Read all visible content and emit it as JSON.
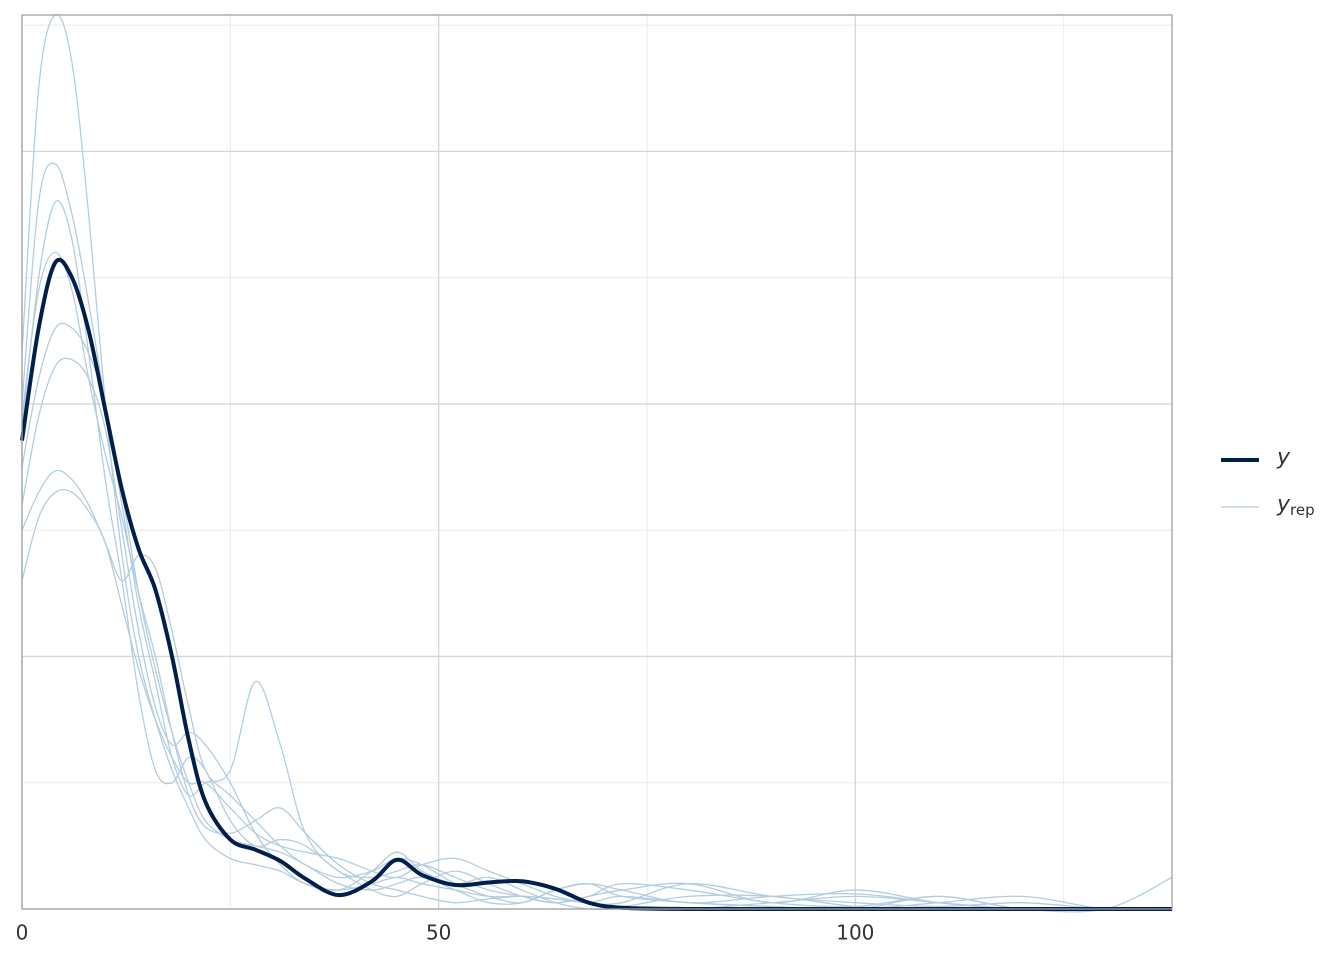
{
  "chart_data": {
    "type": "density-overlay",
    "x": [
      0,
      2,
      4,
      6,
      8,
      10,
      12,
      14,
      16,
      18,
      20,
      22,
      25,
      28,
      31,
      34,
      38,
      42,
      45,
      48,
      52,
      56,
      60,
      64,
      68,
      72,
      80,
      90,
      100,
      110,
      120,
      130,
      138
    ],
    "xlim": [
      0,
      138
    ],
    "xticks": [
      0,
      50,
      100
    ],
    "xminor": [
      25,
      75,
      125
    ],
    "ylim": [
      0,
      7.08
    ],
    "yticks": [
      0,
      2,
      4,
      6
    ],
    "yminor": [
      1,
      3,
      5,
      7
    ],
    "grid": true,
    "legend": "right",
    "series": [
      {
        "name": "y",
        "color": "#011f4b",
        "width": 4,
        "values": [
          3.71,
          4.6,
          5.12,
          5.0,
          4.58,
          3.95,
          3.32,
          2.85,
          2.53,
          2.0,
          1.34,
          0.85,
          0.55,
          0.47,
          0.38,
          0.24,
          0.11,
          0.22,
          0.39,
          0.27,
          0.19,
          0.21,
          0.22,
          0.16,
          0.05,
          0.01,
          0,
          0,
          0,
          0,
          0,
          0,
          0
        ]
      },
      {
        "name": "y",
        "subscript": "rep",
        "color": "#b3cde0",
        "width": 1.3,
        "replicates": [
          [
            4.4,
            6.5,
            7.08,
            6.7,
            5.5,
            4.0,
            2.8,
            2.0,
            1.5,
            1.1,
            0.8,
            0.55,
            0.4,
            0.35,
            0.3,
            0.2,
            0.15,
            0.2,
            0.25,
            0.2,
            0.15,
            0.1,
            0.1,
            0.08,
            0.05,
            0.1,
            0.05,
            0.02,
            0,
            0.1,
            0,
            0,
            0.25
          ],
          [
            4.0,
            5.6,
            5.9,
            5.5,
            4.8,
            4.0,
            3.2,
            2.4,
            1.8,
            1.2,
            0.9,
            1.0,
            1.1,
            1.8,
            1.3,
            0.6,
            0.3,
            0.25,
            0.3,
            0.35,
            0.25,
            0.15,
            0.1,
            0.05,
            0.1,
            0.2,
            0.15,
            0.05,
            0.02,
            0.1,
            0,
            0,
            0
          ],
          [
            3.0,
            3.3,
            3.47,
            3.4,
            3.2,
            2.9,
            2.6,
            2.8,
            2.7,
            2.2,
            1.6,
            1.1,
            0.9,
            0.7,
            0.5,
            0.35,
            0.25,
            0.3,
            0.4,
            0.35,
            0.2,
            0.1,
            0.05,
            0.15,
            0.2,
            0.15,
            0.05,
            0.1,
            0.12,
            0.05,
            0,
            0,
            0
          ],
          [
            2.6,
            3.1,
            3.3,
            3.3,
            3.15,
            2.9,
            2.4,
            1.9,
            1.5,
            1.2,
            1.0,
            1.0,
            0.8,
            0.6,
            0.5,
            0.45,
            0.4,
            0.3,
            0.25,
            0.35,
            0.4,
            0.3,
            0.2,
            0.1,
            0.05,
            0.05,
            0.2,
            0.1,
            0.05,
            0.02,
            0.05,
            0,
            0
          ],
          [
            3.8,
            5.0,
            5.6,
            5.3,
            4.4,
            3.4,
            2.6,
            1.7,
            1.1,
            1.0,
            1.2,
            1.1,
            0.7,
            0.5,
            0.55,
            0.5,
            0.3,
            0.15,
            0.1,
            0.2,
            0.3,
            0.2,
            0.1,
            0.05,
            0.1,
            0.15,
            0.2,
            0.05,
            0.15,
            0.05,
            0,
            0,
            0
          ],
          [
            3.5,
            4.2,
            4.6,
            4.6,
            4.4,
            4.0,
            3.3,
            2.5,
            1.9,
            1.4,
            1.0,
            0.7,
            0.55,
            0.5,
            0.45,
            0.35,
            0.2,
            0.15,
            0.2,
            0.25,
            0.15,
            0.05,
            0.05,
            0.15,
            0.2,
            0.1,
            0.05,
            0.02,
            0,
            0.05,
            0.1,
            0,
            0
          ],
          [
            3.9,
            4.9,
            5.2,
            4.9,
            4.2,
            3.6,
            3.1,
            2.5,
            2.0,
            1.4,
            0.9,
            0.65,
            0.6,
            0.7,
            0.8,
            0.6,
            0.35,
            0.2,
            0.15,
            0.1,
            0.05,
            0.08,
            0.1,
            0.08,
            0.05,
            0.02,
            0.1,
            0.1,
            0.02,
            0,
            0,
            0,
            0
          ],
          [
            3.2,
            3.9,
            4.3,
            4.35,
            4.2,
            3.8,
            3.0,
            2.2,
            1.6,
            1.3,
            1.4,
            1.3,
            1.0,
            0.6,
            0.35,
            0.2,
            0.15,
            0.3,
            0.45,
            0.3,
            0.2,
            0.25,
            0.15,
            0.05,
            0,
            0,
            0,
            0.05,
            0.1,
            0.05,
            0,
            0,
            0
          ]
        ]
      }
    ]
  }
}
